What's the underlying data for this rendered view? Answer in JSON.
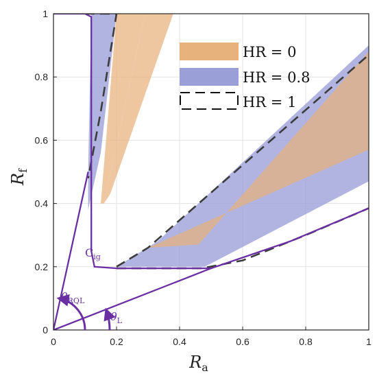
{
  "chart_data": {
    "type": "area",
    "xlabel": "R",
    "xlabel_sub": "a",
    "ylabel": "R",
    "ylabel_sub": "f",
    "xlim": [
      0,
      1
    ],
    "ylim": [
      0,
      1
    ],
    "xticks": [
      "0",
      "0.2",
      "0.4",
      "0.6",
      "0.8",
      "1"
    ],
    "yticks": [
      "0",
      "0.2",
      "0.4",
      "0.6",
      "0.8",
      "1"
    ],
    "grid": true,
    "legend_position": "top-right",
    "colors": {
      "hr0_fill": "#e8b27c",
      "hr08_fill": "#9b9fd8",
      "overlap_fill": "#c9a48f",
      "hr1_line": "#111111",
      "purple": "#6a2fa3"
    },
    "series": [
      {
        "name": "HR = 0",
        "style": "filled-region",
        "regions": [
          [
            [
              0.2,
              1.0
            ],
            [
              0.29,
              1.0
            ],
            [
              0.16,
              0.4
            ],
            [
              0.15,
              0.4
            ]
          ],
          [
            [
              0.29,
              1.0
            ],
            [
              0.38,
              1.0
            ],
            [
              0.18,
              0.43
            ],
            [
              0.16,
              0.4
            ]
          ],
          [
            [
              0.3,
              0.26
            ],
            [
              0.46,
              0.27
            ],
            [
              1.0,
              0.88
            ],
            [
              1.0,
              0.57
            ]
          ]
        ]
      },
      {
        "name": "HR = 0.8",
        "style": "filled-region",
        "regions": [
          [
            [
              0.12,
              1.0
            ],
            [
              0.2,
              1.0
            ],
            [
              0.15,
              0.56
            ],
            [
              0.11,
              0.38
            ],
            [
              0.11,
              0.5
            ]
          ],
          [
            [
              0.2,
              0.2
            ],
            [
              0.48,
              0.2
            ],
            [
              1.0,
              0.47
            ],
            [
              1.0,
              0.9
            ],
            [
              0.33,
              0.28
            ]
          ]
        ]
      },
      {
        "name": "HR = 1",
        "style": "dashed-boundary",
        "lines": [
          [
            [
              0.1,
              1.0
            ],
            [
              0.2,
              1.0
            ],
            [
              0.2,
              1.0
            ],
            [
              0.15,
              0.69
            ],
            [
              0.11,
              0.48
            ]
          ],
          [
            [
              0.2,
              0.2
            ],
            [
              0.3,
              0.26
            ],
            [
              1.0,
              0.87
            ]
          ],
          [
            [
              0.2,
              0.195
            ],
            [
              0.47,
              0.195
            ],
            [
              0.6,
              0.22
            ],
            [
              0.8,
              0.3
            ],
            [
              1.0,
              0.385
            ]
          ]
        ]
      }
    ],
    "curves": [
      {
        "name": "Cig",
        "points": [
          [
            0.0,
            1.0
          ],
          [
            0.1,
            1.0
          ],
          [
            0.12,
            0.99
          ],
          [
            0.12,
            0.25
          ],
          [
            0.13,
            0.2
          ],
          [
            0.2,
            0.195
          ],
          [
            0.5,
            0.195
          ],
          [
            0.75,
            0.28
          ],
          [
            1.0,
            0.385
          ]
        ]
      },
      {
        "name": "theta_RQL_line",
        "points": [
          [
            0.0,
            0.0
          ],
          [
            0.11,
            0.5
          ]
        ]
      },
      {
        "name": "theta_L_line",
        "points": [
          [
            0.0,
            0.0
          ],
          [
            0.5,
            0.195
          ]
        ]
      }
    ],
    "annotations": {
      "cig": {
        "main": "C",
        "sub": "ig"
      },
      "theta_rql": {
        "main": "θ",
        "sub": "RQL"
      },
      "theta_l": {
        "main": "θ",
        "sub": "L"
      }
    }
  }
}
